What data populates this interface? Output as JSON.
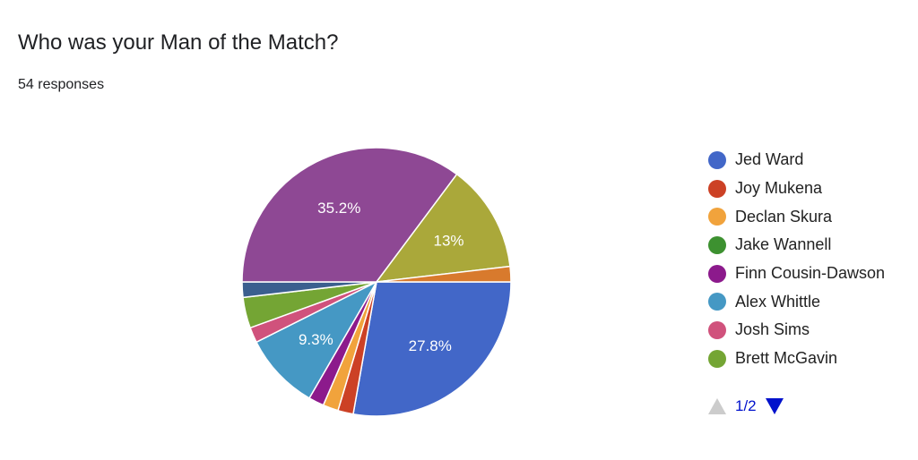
{
  "header": {
    "title": "Who was your Man of the Match?",
    "responses": "54 responses"
  },
  "chart_data": {
    "type": "pie",
    "total": 54,
    "slices": [
      {
        "name": "Jed Ward",
        "value": 15,
        "color": "#4267c8",
        "label": "27.8%"
      },
      {
        "name": "Joy Mukena",
        "value": 1,
        "color": "#cc4125",
        "label": ""
      },
      {
        "name": "Declan Skura",
        "value": 1,
        "color": "#f1a33c",
        "label": ""
      },
      {
        "name": "Jake Wannell",
        "value": 0,
        "color": "#3d9130",
        "label": ""
      },
      {
        "name": "Finn Cousin-Dawson",
        "value": 1,
        "color": "#8c1a8c",
        "label": ""
      },
      {
        "name": "Alex Whittle",
        "value": 5,
        "color": "#4598c4",
        "label": "9.3%"
      },
      {
        "name": "Josh Sims",
        "value": 1,
        "color": "#d0527c",
        "label": ""
      },
      {
        "name": "Brett McGavin",
        "value": 2,
        "color": "#74a534",
        "label": ""
      },
      {
        "name": "",
        "value": 1,
        "color": "#3b5f8f",
        "label": ""
      },
      {
        "name": "",
        "value": 19,
        "color": "#8e4894",
        "label": "35.2%"
      },
      {
        "name": "",
        "value": 7,
        "color": "#aaa83a",
        "label": "13%"
      },
      {
        "name": "",
        "value": 1,
        "color": "#d87a2d",
        "label": ""
      }
    ],
    "legend_placement": "right",
    "legend_page": "1/2"
  }
}
